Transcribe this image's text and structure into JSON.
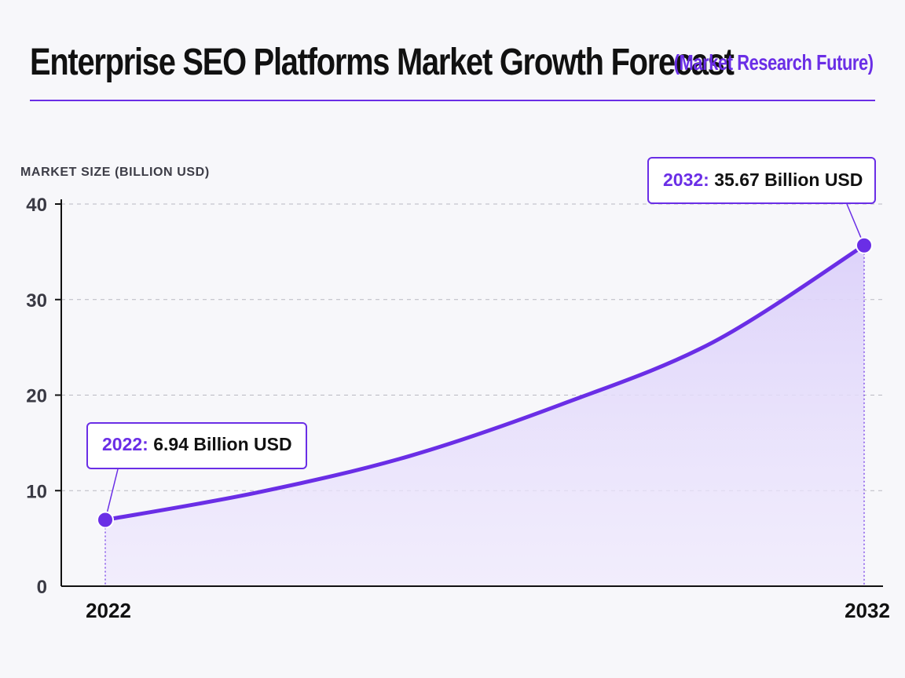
{
  "header": {
    "title": "Enterprise SEO Platforms Market Growth Forecast",
    "subtitle": "(Market Research Future)"
  },
  "colors": {
    "accent": "#6a2ee6",
    "line": "#6a2ee6",
    "area_fill": "#e4dcfb",
    "grid": "#b9b9c2",
    "axis": "#111111"
  },
  "callouts": [
    {
      "year": "2022:",
      "value": "6.94 Billion USD"
    },
    {
      "year": "2032:",
      "value": "35.67 Billion USD"
    }
  ],
  "chart_data": {
    "type": "area",
    "ylabel": "MARKET SIZE (BILLION USD)",
    "xlabel": "",
    "x_ticks": [
      "2022",
      "2032"
    ],
    "y_ticks": [
      "0",
      "10",
      "20",
      "30",
      "40"
    ],
    "ylim": [
      0,
      40
    ],
    "xlim": [
      2022,
      2032
    ],
    "grid": true,
    "series": [
      {
        "x": [
          2022,
          2024,
          2026,
          2028,
          2030,
          2032
        ],
        "values": [
          6.94,
          9.8,
          13.6,
          19.0,
          25.5,
          35.67
        ]
      }
    ],
    "endpoints": [
      {
        "x": 2022,
        "y": 6.94
      },
      {
        "x": 2032,
        "y": 35.67
      }
    ]
  }
}
